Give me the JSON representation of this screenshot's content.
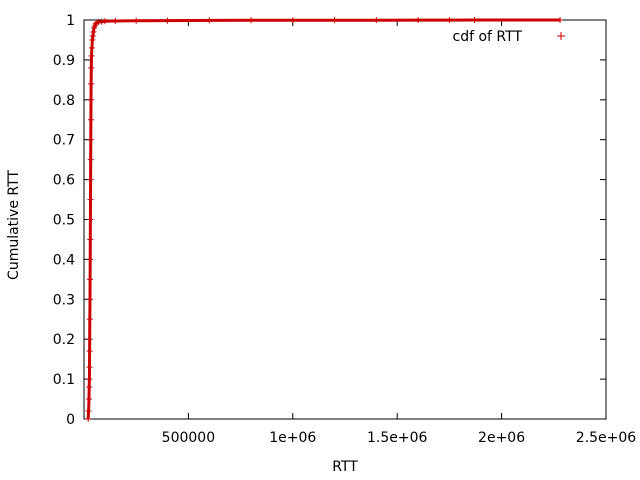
{
  "chart_data": {
    "type": "scatter",
    "title": "",
    "xlabel": "RTT",
    "ylabel": "Cumulative RTT",
    "xlim": [
      0,
      2500000
    ],
    "ylim": [
      0,
      1
    ],
    "x_ticks": [
      {
        "value": 500000,
        "label": "500000"
      },
      {
        "value": 1000000,
        "label": "1e+06"
      },
      {
        "value": 1500000,
        "label": "1.5e+06"
      },
      {
        "value": 2000000,
        "label": "2e+06"
      },
      {
        "value": 2500000,
        "label": "2.5e+06"
      }
    ],
    "y_ticks": [
      {
        "value": 0,
        "label": "0"
      },
      {
        "value": 0.1,
        "label": "0.1"
      },
      {
        "value": 0.2,
        "label": "0.2"
      },
      {
        "value": 0.3,
        "label": "0.3"
      },
      {
        "value": 0.4,
        "label": "0.4"
      },
      {
        "value": 0.5,
        "label": "0.5"
      },
      {
        "value": 0.6,
        "label": "0.6"
      },
      {
        "value": 0.7,
        "label": "0.7"
      },
      {
        "value": 0.8,
        "label": "0.8"
      },
      {
        "value": 0.9,
        "label": "0.9"
      },
      {
        "value": 1,
        "label": "1"
      }
    ],
    "grid": false,
    "legend_position": "top-right",
    "series": [
      {
        "name": "cdf of RTT",
        "color": "#cc0000",
        "marker": "plus",
        "points": [
          [
            20000,
            0.0
          ],
          [
            22000,
            0.02
          ],
          [
            24000,
            0.05
          ],
          [
            25000,
            0.08
          ],
          [
            26000,
            0.1
          ],
          [
            26500,
            0.13
          ],
          [
            27000,
            0.17
          ],
          [
            27500,
            0.2
          ],
          [
            28000,
            0.25
          ],
          [
            28500,
            0.3
          ],
          [
            29000,
            0.35
          ],
          [
            29500,
            0.4
          ],
          [
            30000,
            0.45
          ],
          [
            30500,
            0.5
          ],
          [
            31000,
            0.55
          ],
          [
            31500,
            0.6
          ],
          [
            32000,
            0.65
          ],
          [
            32500,
            0.7
          ],
          [
            33000,
            0.75
          ],
          [
            33500,
            0.8
          ],
          [
            34000,
            0.84
          ],
          [
            35000,
            0.88
          ],
          [
            36000,
            0.91
          ],
          [
            38000,
            0.93
          ],
          [
            40000,
            0.95
          ],
          [
            42000,
            0.96
          ],
          [
            45000,
            0.97
          ],
          [
            48000,
            0.98
          ],
          [
            52000,
            0.985
          ],
          [
            56000,
            0.99
          ],
          [
            60000,
            0.993
          ],
          [
            70000,
            0.995
          ],
          [
            85000,
            0.996
          ],
          [
            100000,
            0.997
          ],
          [
            150000,
            0.9975
          ],
          [
            250000,
            0.998
          ],
          [
            400000,
            0.9985
          ],
          [
            600000,
            0.999
          ],
          [
            800000,
            0.9992
          ],
          [
            1000000,
            0.9994
          ],
          [
            1200000,
            0.9995
          ],
          [
            1400000,
            0.9996
          ],
          [
            1600000,
            0.9997
          ],
          [
            1750000,
            0.9998
          ],
          [
            1870000,
            0.9999
          ],
          [
            2280000,
            1.0
          ]
        ]
      }
    ]
  }
}
